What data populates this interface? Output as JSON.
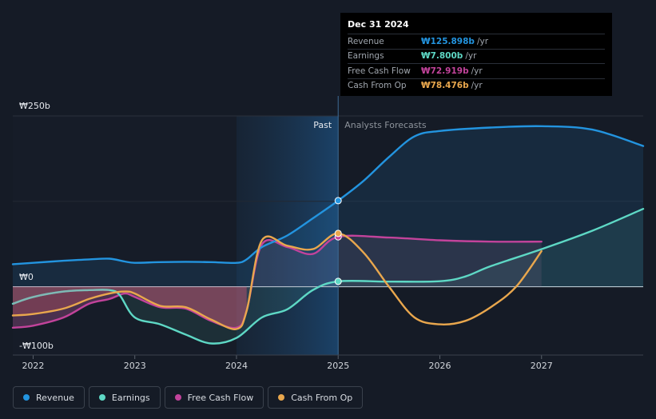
{
  "chart_data": {
    "type": "line",
    "currency_prefix": "₩",
    "y_axis_labels": [
      {
        "value": 250,
        "label": "₩250b"
      },
      {
        "value": 0,
        "label": "₩0"
      },
      {
        "value": -100,
        "label": "-₩100b"
      }
    ],
    "ylim": [
      -100,
      250
    ],
    "xlim": [
      2021.8,
      2028.0
    ],
    "x_ticks": [
      {
        "value": 2022,
        "label": "2022"
      },
      {
        "value": 2023,
        "label": "2023"
      },
      {
        "value": 2024,
        "label": "2024"
      },
      {
        "value": 2025,
        "label": "2025"
      },
      {
        "value": 2026,
        "label": "2026"
      },
      {
        "value": 2027,
        "label": "2027"
      }
    ],
    "past_label": "Past",
    "forecast_label": "Analysts Forecasts",
    "forecast_start": 2025.0,
    "highlight_start": 2024.0,
    "series": [
      {
        "key": "revenue",
        "name": "Revenue",
        "color": "#2394df",
        "points": [
          [
            2021.8,
            33
          ],
          [
            2022.0,
            35
          ],
          [
            2022.3,
            38
          ],
          [
            2022.55,
            40
          ],
          [
            2022.75,
            41
          ],
          [
            2022.9,
            37
          ],
          [
            2023.0,
            35
          ],
          [
            2023.25,
            36
          ],
          [
            2023.5,
            36.5
          ],
          [
            2023.75,
            36
          ],
          [
            2024.0,
            35
          ],
          [
            2024.1,
            40
          ],
          [
            2024.25,
            58
          ],
          [
            2024.5,
            75
          ],
          [
            2024.75,
            100
          ],
          [
            2025.0,
            126
          ],
          [
            2025.25,
            155
          ],
          [
            2025.5,
            190
          ],
          [
            2025.75,
            220
          ],
          [
            2026.0,
            228
          ],
          [
            2026.5,
            233
          ],
          [
            2027.0,
            235
          ],
          [
            2027.5,
            230
          ],
          [
            2028.0,
            206
          ]
        ]
      },
      {
        "key": "earnings",
        "name": "Earnings",
        "color": "#5ed8c5",
        "points": [
          [
            2021.8,
            -25
          ],
          [
            2022.0,
            -15
          ],
          [
            2022.3,
            -7
          ],
          [
            2022.55,
            -5
          ],
          [
            2022.75,
            -5
          ],
          [
            2022.85,
            -12
          ],
          [
            2023.0,
            -45
          ],
          [
            2023.25,
            -55
          ],
          [
            2023.5,
            -70
          ],
          [
            2023.75,
            -83
          ],
          [
            2024.0,
            -75
          ],
          [
            2024.25,
            -45
          ],
          [
            2024.5,
            -33
          ],
          [
            2024.75,
            -5
          ],
          [
            2025.0,
            7.8
          ],
          [
            2025.5,
            7.5
          ],
          [
            2026.0,
            8
          ],
          [
            2026.25,
            15
          ],
          [
            2026.5,
            30
          ],
          [
            2027.0,
            55
          ],
          [
            2027.5,
            82
          ],
          [
            2028.0,
            114
          ]
        ]
      },
      {
        "key": "fcf",
        "name": "Free Cash Flow",
        "color": "#c2439b",
        "end": 2027.0,
        "points": [
          [
            2021.8,
            -60
          ],
          [
            2022.0,
            -57
          ],
          [
            2022.3,
            -45
          ],
          [
            2022.55,
            -25
          ],
          [
            2022.75,
            -18
          ],
          [
            2022.9,
            -10
          ],
          [
            2023.0,
            -15
          ],
          [
            2023.25,
            -30
          ],
          [
            2023.5,
            -32
          ],
          [
            2023.75,
            -50
          ],
          [
            2024.0,
            -60
          ],
          [
            2024.1,
            -35
          ],
          [
            2024.25,
            62
          ],
          [
            2024.5,
            58
          ],
          [
            2024.75,
            48
          ],
          [
            2025.0,
            73
          ],
          [
            2025.5,
            72
          ],
          [
            2026.0,
            68
          ],
          [
            2026.5,
            66
          ],
          [
            2027.0,
            66
          ]
        ]
      },
      {
        "key": "cfo",
        "name": "Cash From Op",
        "color": "#e9a74d",
        "end": 2027.0,
        "points": [
          [
            2021.8,
            -42
          ],
          [
            2022.0,
            -40
          ],
          [
            2022.3,
            -32
          ],
          [
            2022.55,
            -18
          ],
          [
            2022.75,
            -10
          ],
          [
            2022.9,
            -7
          ],
          [
            2023.0,
            -10
          ],
          [
            2023.25,
            -28
          ],
          [
            2023.5,
            -30
          ],
          [
            2023.75,
            -48
          ],
          [
            2024.0,
            -62
          ],
          [
            2024.1,
            -35
          ],
          [
            2024.25,
            68
          ],
          [
            2024.5,
            60
          ],
          [
            2024.75,
            55
          ],
          [
            2025.0,
            78
          ],
          [
            2025.25,
            50
          ],
          [
            2025.5,
            0
          ],
          [
            2025.75,
            -45
          ],
          [
            2026.0,
            -55
          ],
          [
            2026.25,
            -50
          ],
          [
            2026.5,
            -30
          ],
          [
            2026.75,
            0
          ],
          [
            2027.0,
            52
          ]
        ]
      }
    ]
  },
  "tooltip": {
    "date": "Dec 31 2024",
    "rows": [
      {
        "label": "Revenue",
        "value": "₩125.898b",
        "unit": "/yr",
        "color": "#2394df"
      },
      {
        "label": "Earnings",
        "value": "₩7.800b",
        "unit": "/yr",
        "color": "#5ed8c5"
      },
      {
        "label": "Free Cash Flow",
        "value": "₩72.919b",
        "unit": "/yr",
        "color": "#c2439b"
      },
      {
        "label": "Cash From Op",
        "value": "₩78.476b",
        "unit": "/yr",
        "color": "#e9a74d"
      }
    ]
  },
  "legend": [
    {
      "label": "Revenue",
      "color": "#2394df"
    },
    {
      "label": "Earnings",
      "color": "#5ed8c5"
    },
    {
      "label": "Free Cash Flow",
      "color": "#c2439b"
    },
    {
      "label": "Cash From Op",
      "color": "#e9a74d"
    }
  ]
}
